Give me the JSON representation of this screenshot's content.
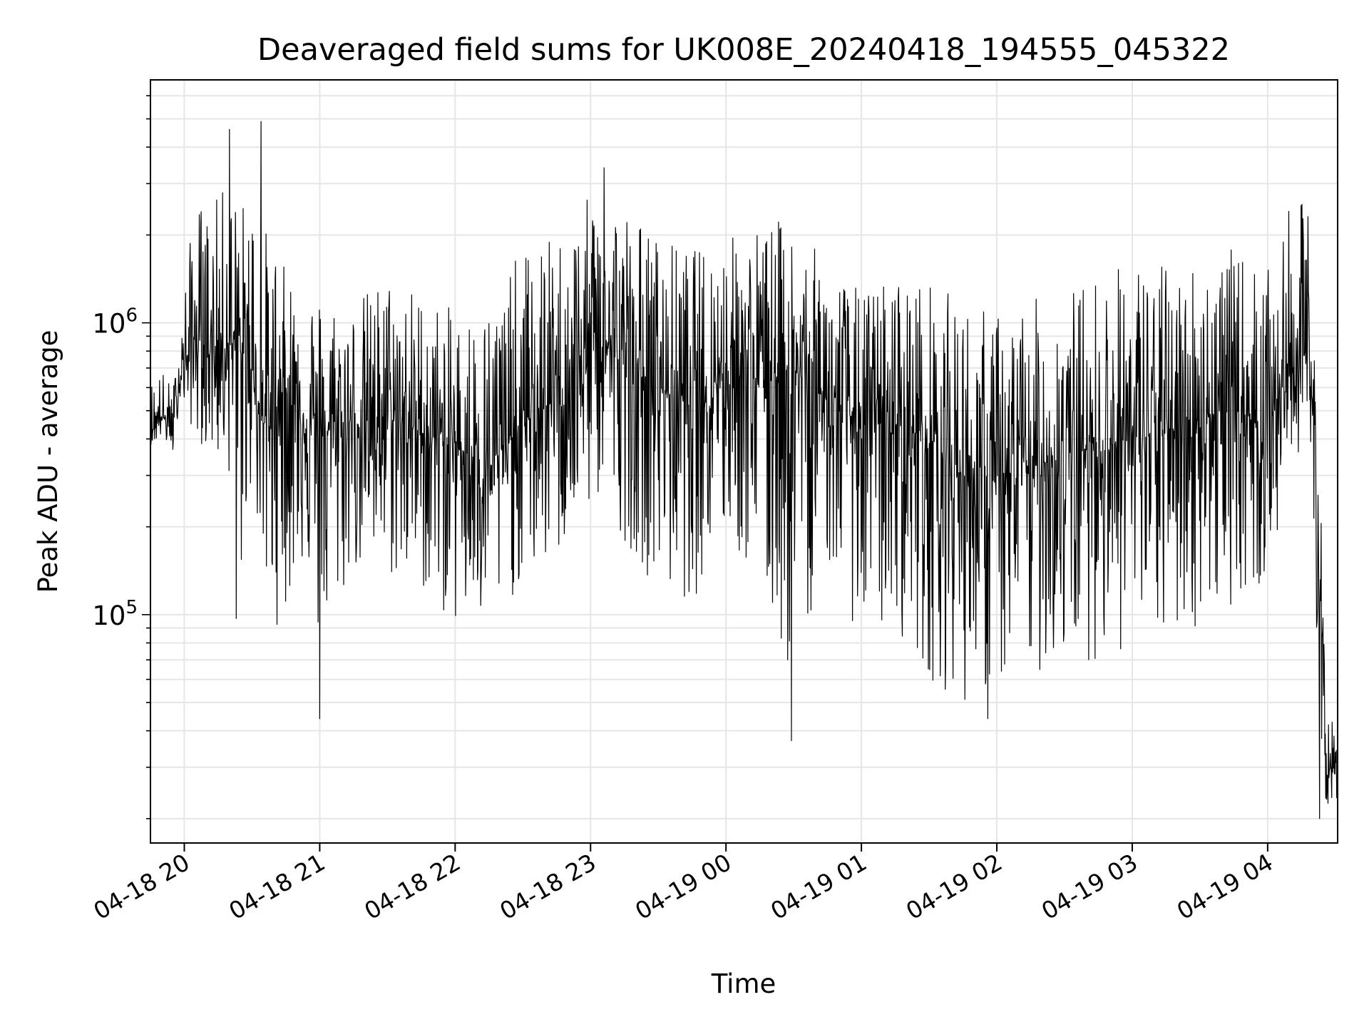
{
  "chart_data": {
    "type": "line",
    "title": "Deaveraged field sums for UK008E_20240418_194555_045322",
    "xlabel": "Time",
    "ylabel": "Peak ADU - average",
    "y_scale": "log",
    "ylim": [
      16500,
      6800000
    ],
    "xlim": [
      "2024-04-18 19:45",
      "2024-04-19 04:31"
    ],
    "x_ticks": [
      "2024-04-18 20:00",
      "2024-04-18 21:00",
      "2024-04-18 22:00",
      "2024-04-18 23:00",
      "2024-04-19 00:00",
      "2024-04-19 01:00",
      "2024-04-19 02:00",
      "2024-04-19 03:00",
      "2024-04-19 04:00"
    ],
    "x_tick_labels": [
      "04-18 20",
      "04-18 21",
      "04-18 22",
      "04-18 23",
      "04-19 00",
      "04-19 01",
      "04-19 02",
      "04-19 03",
      "04-19 04"
    ],
    "y_tick_labels": [
      {
        "value": 100000,
        "base": "10",
        "exp": "5"
      },
      {
        "value": 1000000,
        "base": "10",
        "exp": "6"
      }
    ],
    "grid": true,
    "line_color": "#000000",
    "series": [
      {
        "values_description": "",
        "x": [
          "2024-04-18 19:45",
          "2024-04-18 19:50",
          "2024-04-18 19:55",
          "2024-04-18 19:58",
          "2024-04-18 20:05",
          "2024-04-18 20:12",
          "2024-04-18 20:20",
          "2024-04-18 20:25",
          "2024-04-18 20:30",
          "2024-04-18 20:35",
          "2024-04-18 20:40",
          "2024-04-18 20:45",
          "2024-04-18 20:52",
          "2024-04-18 20:57",
          "2024-04-18 21:00",
          "2024-04-18 21:15",
          "2024-04-18 21:30",
          "2024-04-18 21:45",
          "2024-04-18 22:00",
          "2024-04-18 22:15",
          "2024-04-18 22:30",
          "2024-04-18 22:45",
          "2024-04-18 22:55",
          "2024-04-18 23:05",
          "2024-04-18 23:15",
          "2024-04-18 23:30",
          "2024-04-18 23:45",
          "2024-04-19 00:00",
          "2024-04-19 00:15",
          "2024-04-19 00:28",
          "2024-04-19 00:45",
          "2024-04-19 01:00",
          "2024-04-19 01:15",
          "2024-04-19 01:30",
          "2024-04-19 01:45",
          "2024-04-19 02:00",
          "2024-04-19 02:15",
          "2024-04-19 02:30",
          "2024-04-19 02:45",
          "2024-04-19 03:00",
          "2024-04-19 03:15",
          "2024-04-19 03:30",
          "2024-04-19 03:45",
          "2024-04-19 04:00",
          "2024-04-19 04:10",
          "2024-04-19 04:18",
          "2024-04-19 04:21",
          "2024-04-19 04:26",
          "2024-04-19 04:31"
        ],
        "median": [
          420000,
          480000,
          430000,
          650000,
          900000,
          800000,
          850000,
          800000,
          700000,
          450000,
          500000,
          600000,
          480000,
          450000,
          420000,
          450000,
          480000,
          420000,
          380000,
          320000,
          450000,
          550000,
          700000,
          900000,
          700000,
          600000,
          550000,
          700000,
          650000,
          700000,
          550000,
          450000,
          450000,
          400000,
          300000,
          280000,
          320000,
          350000,
          380000,
          400000,
          420000,
          480000,
          500000,
          450000,
          700000,
          800000,
          400000,
          30000,
          28000
        ],
        "low": [
          380000,
          400000,
          350000,
          550000,
          400000,
          350000,
          300000,
          120000,
          300000,
          120000,
          90000,
          100000,
          150000,
          110000,
          70000,
          140000,
          130000,
          120000,
          90000,
          85000,
          130000,
          150000,
          200000,
          250000,
          180000,
          120000,
          110000,
          180000,
          120000,
          60000,
          150000,
          80000,
          90000,
          60000,
          50000,
          55000,
          60000,
          70000,
          70000,
          75000,
          80000,
          90000,
          110000,
          120000,
          300000,
          450000,
          70000,
          22000,
          23000
        ],
        "high": [
          650000,
          700000,
          600000,
          1000000,
          2700000,
          2500000,
          3200000,
          2600000,
          3000000,
          2200000,
          2000000,
          1500000,
          1600000,
          1400000,
          1300000,
          1200000,
          1500000,
          1300000,
          1100000,
          1200000,
          1800000,
          2000000,
          2400000,
          3200000,
          2600000,
          2000000,
          1800000,
          2000000,
          2200000,
          2300000,
          1600000,
          1300000,
          1500000,
          1400000,
          1200000,
          1100000,
          1200000,
          1300000,
          1500000,
          1700000,
          1600000,
          1700000,
          1800000,
          1500000,
          2500000,
          2700000,
          1200000,
          50000,
          40000
        ]
      }
    ],
    "annotated_extremes": [
      {
        "x": "2024-04-18 20:20",
        "y": 4600000
      },
      {
        "x": "2024-04-18 20:34",
        "y": 4900000
      },
      {
        "x": "2024-04-18 23:06",
        "y": 3400000
      },
      {
        "x": "2024-04-18 20:23",
        "y": 97000
      },
      {
        "x": "2024-04-18 21:00",
        "y": 44000
      },
      {
        "x": "2024-04-19 00:29",
        "y": 37000
      },
      {
        "x": "2024-04-19 01:56",
        "y": 44000
      },
      {
        "x": "2024-04-19 04:23",
        "y": 20000
      }
    ]
  }
}
